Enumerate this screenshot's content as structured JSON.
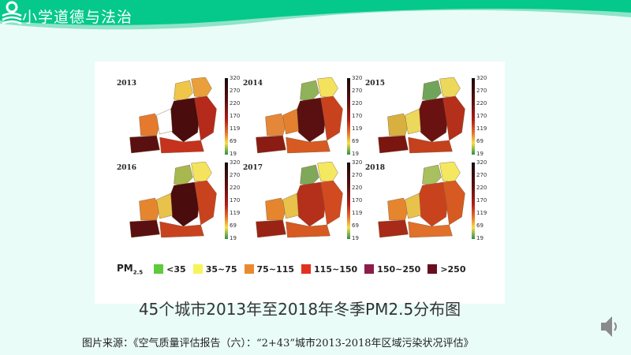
{
  "header": {
    "title": "小学道德与法治",
    "logo_icon": "book-reader-logo-icon",
    "color": "#04c98a"
  },
  "figure": {
    "colorbar_ticks": [
      "320",
      "270",
      "220",
      "170",
      "119",
      "69",
      "19"
    ],
    "maps": [
      {
        "year": "2013",
        "colors": [
          "#f0c64a",
          "#e9a03a",
          "#4a0c0c",
          "#e57a2e",
          "#ffffff",
          "#5a1010",
          "#b52a1a",
          "#c5321d"
        ]
      },
      {
        "year": "2014",
        "colors": [
          "#8fb25a",
          "#f4e25c",
          "#5a1010",
          "#e5873a",
          "#e4802f",
          "#8a1c14",
          "#c9421e",
          "#d65a22"
        ]
      },
      {
        "year": "2015",
        "colors": [
          "#6fa55a",
          "#ecd85a",
          "#6a1212",
          "#d8b040",
          "#ecd85a",
          "#7a1510",
          "#b5301a",
          "#c5401d"
        ]
      },
      {
        "year": "2016",
        "colors": [
          "#a8b84e",
          "#f4e35e",
          "#4a0c0c",
          "#e5862f",
          "#e8c24a",
          "#5a1010",
          "#c9421e",
          "#c9421e"
        ]
      },
      {
        "year": "2017",
        "colors": [
          "#7fa85a",
          "#f4e860",
          "#b5301a",
          "#e5862f",
          "#e8c24a",
          "#9a2414",
          "#d24a20",
          "#d65a22"
        ]
      },
      {
        "year": "2018",
        "colors": [
          "#a8c060",
          "#f4e860",
          "#c9421e",
          "#e5862f",
          "#e8c24a",
          "#a82a18",
          "#d65a22",
          "#e0702a"
        ]
      }
    ],
    "legend": {
      "label": "PM",
      "label_sub": "2.5",
      "items": [
        {
          "label": "<35",
          "color": "#5ecb3c"
        },
        {
          "label": "35~75",
          "color": "#f7f45a"
        },
        {
          "label": "75~115",
          "color": "#ea8a30"
        },
        {
          "label": "115~150",
          "color": "#e0321f"
        },
        {
          "label": "150~250",
          "color": "#8e1c4a"
        },
        {
          "label": ">250",
          "color": "#6a0e1e"
        }
      ]
    },
    "caption": "45个城市2013年至2018年冬季PM2.5分布图"
  },
  "source": "图片来源：《空气质量评估报告（六）：“2+43”城市2013-2018年区域污染状况评估》",
  "speaker_icon": "speaker-icon"
}
